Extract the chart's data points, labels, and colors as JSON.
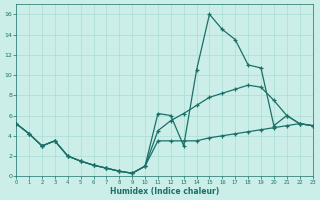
{
  "xlabel": "Humidex (Indice chaleur)",
  "bg_color": "#cceee8",
  "line_color": "#1a7068",
  "grid_color": "#aaddd6",
  "xlim": [
    0,
    23
  ],
  "ylim": [
    0,
    17
  ],
  "xticks": [
    0,
    1,
    2,
    3,
    4,
    5,
    6,
    7,
    8,
    9,
    10,
    11,
    12,
    13,
    14,
    15,
    16,
    17,
    18,
    19,
    20,
    21,
    22,
    23
  ],
  "yticks": [
    0,
    2,
    4,
    6,
    8,
    10,
    12,
    14,
    16
  ],
  "series": [
    {
      "x": [
        0,
        1,
        2,
        3,
        4,
        5,
        6,
        7,
        8,
        9,
        10,
        11,
        12,
        13,
        14,
        15,
        16,
        17,
        18,
        19,
        20,
        21,
        22,
        23
      ],
      "y": [
        5.2,
        4.2,
        3.0,
        3.5,
        2.0,
        1.5,
        1.1,
        0.8,
        0.5,
        0.3,
        1.0,
        6.2,
        6.0,
        3.0,
        10.5,
        16.0,
        14.5,
        13.5,
        11.0,
        10.7,
        5.0,
        6.0,
        5.2,
        5.0
      ]
    },
    {
      "x": [
        0,
        1,
        2,
        3,
        4,
        5,
        6,
        7,
        8,
        9,
        10,
        11,
        12,
        13,
        14,
        15,
        16,
        17,
        18,
        19,
        20,
        21,
        22,
        23
      ],
      "y": [
        5.2,
        4.2,
        3.0,
        3.5,
        2.0,
        1.5,
        1.1,
        0.8,
        0.5,
        0.3,
        1.0,
        4.5,
        5.5,
        6.2,
        7.0,
        7.8,
        8.2,
        8.6,
        9.0,
        8.8,
        7.5,
        6.0,
        5.2,
        5.0
      ]
    },
    {
      "x": [
        0,
        1,
        2,
        3,
        4,
        5,
        6,
        7,
        8,
        9,
        10,
        11,
        12,
        13,
        14,
        15,
        16,
        17,
        18,
        19,
        20,
        21,
        22,
        23
      ],
      "y": [
        5.2,
        4.2,
        3.0,
        3.5,
        2.0,
        1.5,
        1.1,
        0.8,
        0.5,
        0.3,
        1.0,
        3.5,
        3.5,
        3.5,
        3.5,
        3.8,
        4.0,
        4.2,
        4.4,
        4.6,
        4.8,
        5.0,
        5.2,
        5.0
      ]
    }
  ]
}
